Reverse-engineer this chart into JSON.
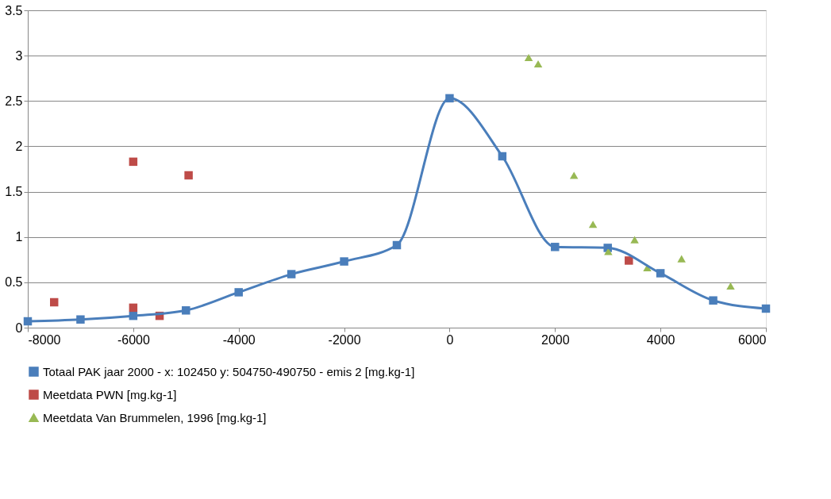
{
  "chart_data": {
    "type": "line",
    "xlim": [
      -8000,
      6000
    ],
    "xticks": [
      -8000,
      -6000,
      -4000,
      -2000,
      0,
      2000,
      4000,
      6000
    ],
    "ylim": [
      0,
      3.5
    ],
    "yticks": [
      0,
      0.5,
      1,
      1.5,
      2,
      2.5,
      3,
      3.5
    ],
    "grid": "y",
    "legend": "bottom",
    "series": [
      {
        "name": "Totaal PAK jaar 2000 - x: 102450 y: 504750-490750  - emis 2 [mg.kg-1]",
        "marker": "square",
        "color": "#4a7ebb",
        "x": [
          -8000,
          -7000,
          -6000,
          -5000,
          -4000,
          -3000,
          -2000,
          -1000,
          0,
          1000,
          2000,
          3000,
          4000,
          5000,
          6000
        ],
        "values": [
          0.07,
          0.09,
          0.13,
          0.19,
          0.39,
          0.59,
          0.73,
          0.91,
          2.53,
          1.89,
          0.89,
          0.88,
          0.6,
          0.3,
          0.21
        ]
      },
      {
        "name": "Meetdata PWN [mg.kg-1]",
        "type": "scatter",
        "marker": "square",
        "color": "#be4b48",
        "x": [
          -7500,
          -6000,
          -6000,
          -5500,
          -4950,
          3400
        ],
        "values": [
          0.28,
          1.83,
          0.22,
          0.13,
          1.68,
          0.74
        ]
      },
      {
        "name": "Meetdata Van Brummelen, 1996 [mg.kg-1]",
        "type": "scatter",
        "marker": "triangle",
        "color": "#98b954",
        "x": [
          1500,
          1680,
          2360,
          2720,
          3010,
          3510,
          3750,
          4400,
          5330
        ],
        "values": [
          2.98,
          2.91,
          1.68,
          1.14,
          0.84,
          0.97,
          0.66,
          0.76,
          0.46
        ]
      }
    ]
  }
}
